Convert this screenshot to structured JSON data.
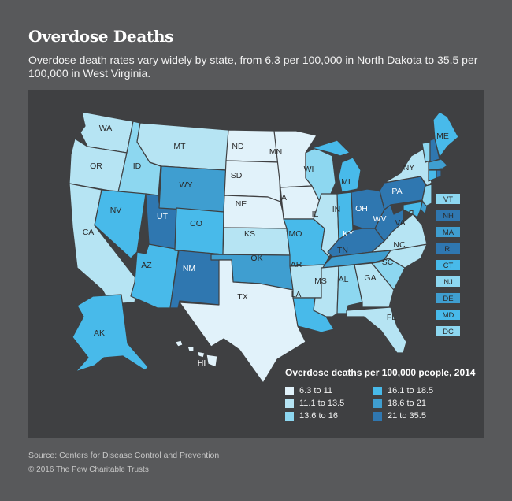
{
  "title": "Overdose Deaths",
  "subtitle": "Overdose death rates vary widely by state, from 6.3 per 100,000 in North Dakota to 35.5 per 100,000 in West Virginia.",
  "colors": {
    "c1": "#e1f2fa",
    "c2": "#b6e4f3",
    "c3": "#8dd7f0",
    "c4": "#48baea",
    "c5": "#3f9ed0",
    "c6": "#2f77b0"
  },
  "legend": {
    "title": "Overdose deaths per 100,000 people, 2014",
    "items": [
      {
        "label": "6.3 to 11",
        "color": "#e1f2fa"
      },
      {
        "label": "16.1 to 18.5",
        "color": "#48baea"
      },
      {
        "label": "11.1 to 13.5",
        "color": "#b6e4f3"
      },
      {
        "label": "18.6 to 21",
        "color": "#3f9ed0"
      },
      {
        "label": "13.6 to 16",
        "color": "#8dd7f0"
      },
      {
        "label": "21 to 35.5",
        "color": "#2f77b0"
      }
    ]
  },
  "states": {
    "WA": "c2",
    "OR": "c2",
    "CA": "c2",
    "ID": "c3",
    "NV": "c4",
    "AZ": "c4",
    "UT": "c6",
    "MT": "c2",
    "WY": "c5",
    "CO": "c4",
    "NM": "c6",
    "ND": "c1",
    "SD": "c1",
    "NE": "c1",
    "KS": "c2",
    "OK": "c5",
    "TX": "c1",
    "MN": "c1",
    "IA": "c1",
    "MO": "c4",
    "AR": "c2",
    "LA": "c4",
    "WI": "c3",
    "IL": "c2",
    "MI": "c4",
    "IN": "c4",
    "OH": "c6",
    "KY": "c6",
    "TN": "c5",
    "MS": "c2",
    "AL": "c3",
    "GA": "c2",
    "FL": "c2",
    "SC": "c3",
    "NC": "c2",
    "VA": "c2",
    "WV": "c6",
    "PA": "c6",
    "NY": "c2",
    "ME": "c4",
    "AK": "c4",
    "HI": "c1",
    "VT": "c3",
    "NH": "c6",
    "MA": "c5",
    "RI": "c6",
    "CT": "c4",
    "NJ": "c3",
    "DE": "c5",
    "MD": "c4",
    "DC": "c3"
  },
  "labels": {
    "WA": "WA",
    "OR": "OR",
    "CA": "CA",
    "ID": "ID",
    "NV": "NV",
    "AZ": "AZ",
    "UT": "UT",
    "MT": "MT",
    "WY": "WY",
    "CO": "CO",
    "NM": "NM",
    "ND": "ND",
    "SD": "SD",
    "NE": "NE",
    "KS": "KS",
    "OK": "OK",
    "TX": "TX",
    "MN": "MN",
    "IA": "IA",
    "MO": "MO",
    "AR": "AR",
    "LA": "LA",
    "WI": "WI",
    "IL": "IL",
    "MI": "MI",
    "IN": "IN",
    "OH": "OH",
    "KY": "KY",
    "TN": "TN",
    "MS": "MS",
    "AL": "AL",
    "GA": "GA",
    "FL": "FL",
    "SC": "SC",
    "NC": "NC",
    "VA": "VA",
    "WV": "WV",
    "PA": "PA",
    "NY": "NY",
    "ME": "ME",
    "AK": "AK",
    "HI": "HI"
  },
  "small_states": [
    {
      "code": "VT",
      "label": "VT"
    },
    {
      "code": "NH",
      "label": "NH"
    },
    {
      "code": "MA",
      "label": "MA"
    },
    {
      "code": "RI",
      "label": "RI"
    },
    {
      "code": "CT",
      "label": "CT"
    },
    {
      "code": "NJ",
      "label": "NJ"
    },
    {
      "code": "DE",
      "label": "DE"
    },
    {
      "code": "MD",
      "label": "MD"
    },
    {
      "code": "DC",
      "label": "DC"
    }
  ],
  "source": "Source: Centers for Disease Control and Prevention",
  "copyright": "© 2016 The Pew Charitable Trusts"
}
